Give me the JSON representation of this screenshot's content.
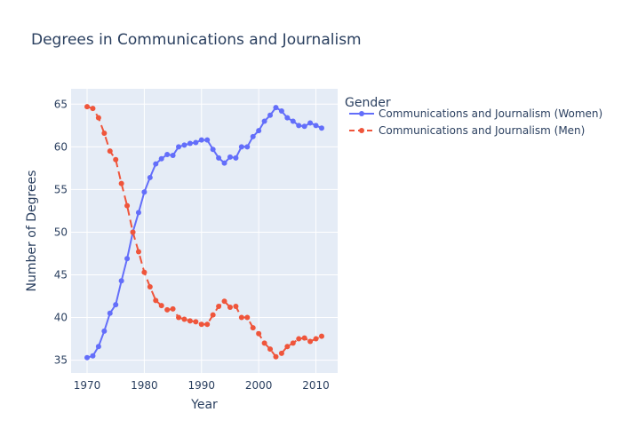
{
  "chart_data": {
    "type": "line",
    "title": "Degrees in Communications and Journalism",
    "xlabel": "Year",
    "ylabel": "Number of Degrees",
    "xlim": [
      1967.2,
      2013.8
    ],
    "ylim": [
      33.5,
      66.8
    ],
    "x_ticks": [
      1970,
      1980,
      1990,
      2000,
      2010
    ],
    "y_ticks": [
      35,
      40,
      45,
      50,
      55,
      60,
      65
    ],
    "grid": true,
    "legend": {
      "title": "Gender",
      "position": "top-right"
    },
    "x": [
      1970,
      1971,
      1972,
      1973,
      1974,
      1975,
      1976,
      1977,
      1978,
      1979,
      1980,
      1981,
      1982,
      1983,
      1984,
      1985,
      1986,
      1987,
      1988,
      1989,
      1990,
      1991,
      1992,
      1993,
      1994,
      1995,
      1996,
      1997,
      1998,
      1999,
      2000,
      2001,
      2002,
      2003,
      2004,
      2005,
      2006,
      2007,
      2008,
      2009,
      2010,
      2011
    ],
    "series": [
      {
        "name": "Communications and Journalism (Women)",
        "color": "#636efa",
        "dash": "solid",
        "values": [
          35.3,
          35.5,
          36.6,
          38.4,
          40.5,
          41.5,
          44.3,
          46.9,
          50.0,
          52.3,
          54.7,
          56.4,
          58.0,
          58.6,
          59.1,
          59.0,
          60.0,
          60.2,
          60.4,
          60.5,
          60.8,
          60.8,
          59.7,
          58.7,
          58.1,
          58.8,
          58.7,
          60.0,
          60.0,
          61.2,
          61.9,
          63.0,
          63.7,
          64.6,
          64.2,
          63.4,
          63.0,
          62.5,
          62.4,
          62.8,
          62.5,
          62.2
        ]
      },
      {
        "name": "Communications and Journalism (Men)",
        "color": "#ef553b",
        "dash": "dash",
        "values": [
          64.7,
          64.5,
          63.4,
          61.6,
          59.5,
          58.5,
          55.7,
          53.1,
          50.0,
          47.7,
          45.3,
          43.6,
          42.0,
          41.4,
          40.9,
          41.0,
          40.0,
          39.8,
          39.6,
          39.5,
          39.2,
          39.2,
          40.3,
          41.3,
          41.9,
          41.2,
          41.3,
          40.0,
          40.0,
          38.8,
          38.1,
          37.0,
          36.3,
          35.4,
          35.8,
          36.6,
          37.0,
          37.5,
          37.6,
          37.2,
          37.5,
          37.8
        ]
      }
    ]
  }
}
